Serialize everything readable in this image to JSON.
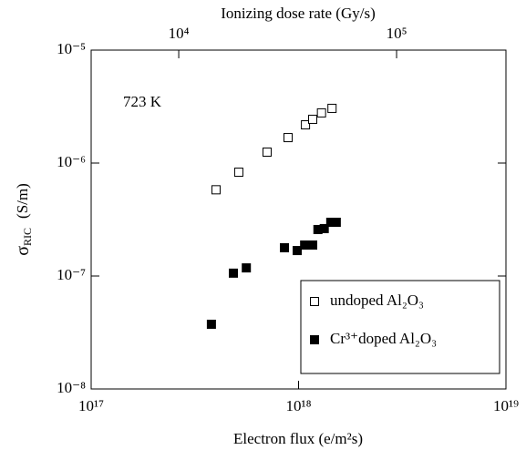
{
  "chart_data": {
    "type": "scatter",
    "x_label": "Electron flux  (e/m²s)",
    "x2_label": "Ionizing dose rate  (Gy/s)",
    "y_label": "σ",
    "y_label_sub": "RIC",
    "y_label_unit": "(S/m)",
    "annotation": "723  K",
    "log_x": true,
    "log_y": true,
    "xlim": [
      1e+17,
      1e+19
    ],
    "xticks": [
      {
        "value": 1e+17,
        "label": "10¹⁷"
      },
      {
        "value": 1e+18,
        "label": "10¹⁸"
      },
      {
        "value": 1e+19,
        "label": "10¹⁹"
      }
    ],
    "x2lim": [
      3963,
      317700
    ],
    "x2ticks": [
      {
        "value": 10000,
        "label": "10⁴"
      },
      {
        "value": 100000,
        "label": "10⁵"
      }
    ],
    "ylim": [
      1e-08,
      1e-05
    ],
    "yticks": [
      {
        "value": 1e-08,
        "label": "10⁻⁸"
      },
      {
        "value": 1e-07,
        "label": "10⁻⁷"
      },
      {
        "value": 1e-06,
        "label": "10⁻⁶"
      },
      {
        "value": 1e-05,
        "label": "10⁻⁵"
      }
    ],
    "legend": "lower right",
    "series": [
      {
        "name": "undoped Al₂O₃",
        "color": "#ffffff",
        "x": [
          4e+17,
          5.15e+17,
          7.05e+17,
          8.9e+17,
          1.08e+18,
          1.17e+18,
          1.29e+18,
          1.45e+18
        ],
        "values": [
          5.8e-07,
          8.3e-07,
          1.25e-06,
          1.68e-06,
          2.18e-06,
          2.44e-06,
          2.78e-06,
          3.05e-06
        ]
      },
      {
        "name": "Cr³⁺doped Al₂O₃",
        "color": "#000000",
        "x": [
          3.8e+17,
          4.85e+17,
          5.6e+17,
          8.55e+17,
          9.85e+17,
          1.07e+18,
          1.17e+18,
          1.24e+18,
          1.33e+18,
          1.43e+18,
          1.52e+18
        ],
        "values": [
          3.74e-08,
          1.06e-07,
          1.18e-07,
          1.78e-07,
          1.68e-07,
          1.88e-07,
          1.88e-07,
          2.58e-07,
          2.63e-07,
          2.99e-07,
          2.99e-07
        ]
      }
    ]
  }
}
